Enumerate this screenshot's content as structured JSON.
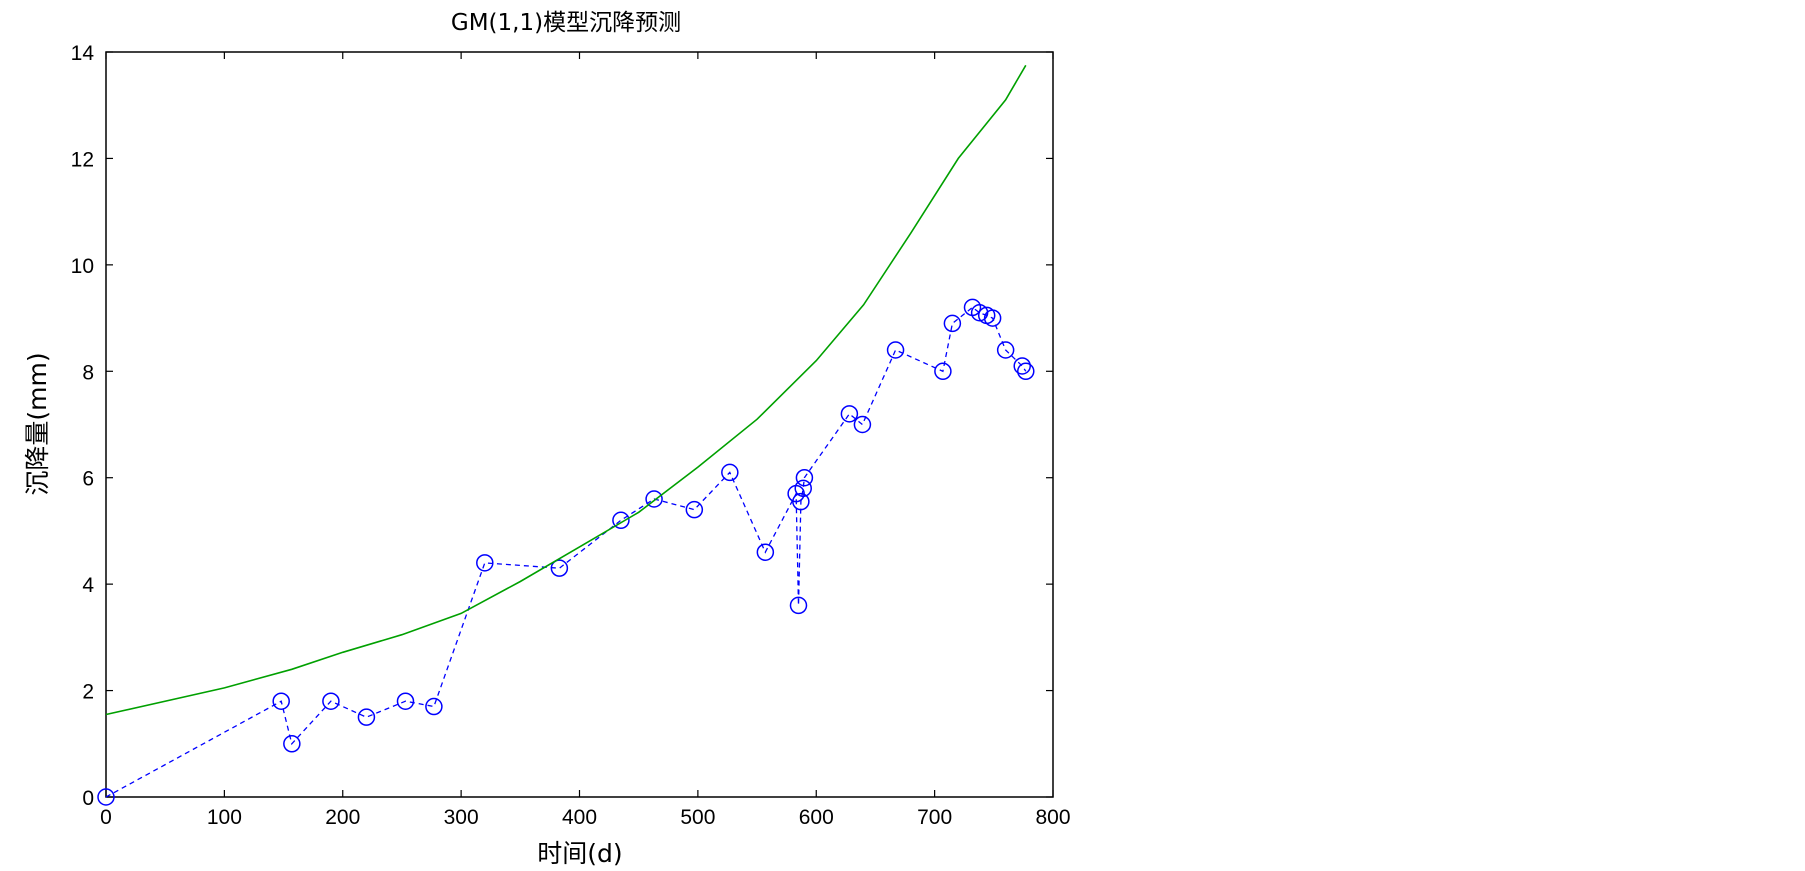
{
  "chart_data": {
    "type": "line",
    "title": "GM(1,1)模型沉降预测",
    "xlabel": "时间(d)",
    "ylabel": "沉降量(mm)",
    "xlim": [
      0,
      800
    ],
    "ylim": [
      0,
      14
    ],
    "xticks": [
      "0",
      "100",
      "200",
      "300",
      "400",
      "500",
      "600",
      "700",
      "800"
    ],
    "yticks": [
      "0",
      "2",
      "4",
      "6",
      "8",
      "10",
      "12",
      "14"
    ],
    "grid": false,
    "series": [
      {
        "style": "dashed-circle-markers",
        "color": "#0000ff",
        "x": [
          0,
          148,
          157,
          190,
          220,
          253,
          277,
          320,
          383,
          435,
          463,
          497,
          527,
          557,
          583,
          585,
          587,
          589,
          590,
          628,
          639,
          667,
          707,
          715,
          732,
          738,
          744,
          749,
          760,
          774,
          777
        ],
        "y": [
          0,
          1.8,
          1.0,
          1.8,
          1.5,
          1.8,
          1.7,
          4.4,
          4.3,
          5.2,
          5.6,
          5.4,
          6.1,
          4.6,
          5.7,
          3.6,
          5.55,
          5.8,
          6.0,
          7.2,
          7.0,
          8.4,
          8.0,
          8.9,
          9.2,
          9.1,
          9.05,
          9.0,
          8.4,
          8.1,
          8.0
        ]
      },
      {
        "style": "solid",
        "color": "#00a000",
        "x": [
          0,
          100,
          157,
          200,
          250,
          300,
          350,
          400,
          450,
          500,
          550,
          600,
          640,
          680,
          720,
          760,
          777
        ],
        "y": [
          1.55,
          2.05,
          2.4,
          2.72,
          3.05,
          3.45,
          4.05,
          4.7,
          5.35,
          6.2,
          7.1,
          8.2,
          9.25,
          10.6,
          12.0,
          13.1,
          13.75
        ]
      }
    ]
  }
}
